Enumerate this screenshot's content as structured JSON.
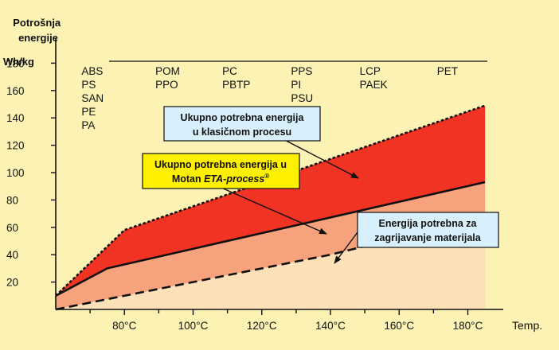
{
  "chart_data": {
    "type": "area",
    "ylabel": "Potrošnja energije",
    "yunit": "Wh/kg",
    "xlabel": "Temp.",
    "ylim": [
      0,
      190
    ],
    "xlim": [
      60,
      188
    ],
    "yticks": [
      20,
      40,
      60,
      80,
      100,
      120,
      140,
      160,
      180
    ],
    "xticks": [
      80,
      100,
      120,
      140,
      160,
      180
    ],
    "xtick_labels": [
      "80°C",
      "100°C",
      "120°C",
      "140°C",
      "160°C",
      "180°C"
    ],
    "materials": [
      {
        "x": 67.5,
        "items": [
          "ABS",
          "PS",
          "SAN",
          "PE",
          "PA"
        ]
      },
      {
        "x": 89,
        "items": [
          "POM",
          "PPO"
        ]
      },
      {
        "x": 108.5,
        "items": [
          "PC",
          "PBTP"
        ]
      },
      {
        "x": 128.5,
        "items": [
          "PPS",
          "PI",
          "PSU"
        ]
      },
      {
        "x": 148.5,
        "items": [
          "LCP",
          "PAEK"
        ]
      },
      {
        "x": 171,
        "items": [
          "PET"
        ]
      }
    ],
    "series": [
      {
        "name": "Ukupno potrebna energija u klasičnom procesu",
        "style": "short-dash",
        "fill": "#f03323",
        "x": [
          60,
          80,
          185
        ],
        "y": [
          10,
          58,
          149
        ]
      },
      {
        "name": "Ukupno potrebna energija u Motan ETA-process",
        "style": "solid",
        "fill": "#f6a27c",
        "x": [
          60,
          75,
          185
        ],
        "y": [
          10,
          30,
          93
        ]
      },
      {
        "name": "Energija potrebna za zagrijavanje materijala",
        "style": "long-dash",
        "fill": "#fce0b8",
        "x": [
          60,
          140,
          185
        ],
        "y": [
          0,
          40,
          68
        ]
      }
    ],
    "callouts": {
      "classic": [
        "Ukupno potrebna energija",
        "u klasičnom procesu"
      ],
      "eta_line1": "Ukupno potrebna energija u",
      "eta_prefix": "Motan ",
      "eta_italic": "ETA-process",
      "eta_reg": "®",
      "heating": [
        "Energija potrebna za",
        "zagrijavanje materijala"
      ]
    }
  }
}
